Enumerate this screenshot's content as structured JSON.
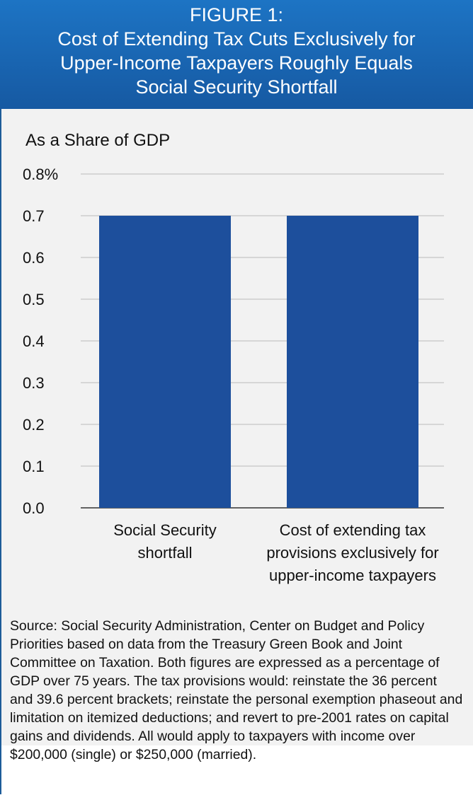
{
  "header": {
    "figure_label": "FIGURE 1:",
    "title_lines": [
      "Cost of Extending Tax Cuts Exclusively for",
      "Upper-Income Taxpayers Roughly Equals",
      "Social Security Shortfall"
    ]
  },
  "colors": {
    "header_bg": "#1a66b3",
    "bar": "#1d4f9c",
    "panel_bg": "#f2f2f2",
    "gridline": "#bbbbbb"
  },
  "chart_data": {
    "type": "bar",
    "subtitle": "As a Share of GDP",
    "categories": [
      [
        "Social Security",
        "shortfall"
      ],
      [
        "Cost of extending tax",
        "provisions exclusively for",
        "upper-income taxpayers"
      ]
    ],
    "values": [
      0.7,
      0.7
    ],
    "ylim": [
      0,
      0.8
    ],
    "yticks": [
      "0.0",
      "0.1",
      "0.2",
      "0.3",
      "0.4",
      "0.5",
      "0.6",
      "0.7",
      "0.8"
    ],
    "ytick_unit": "%",
    "grid": true
  },
  "source_text": "Source: Social Security Administration, Center on Budget and Policy Priorities based on data from the Treasury Green Book and Joint Committee on Taxation.  Both figures are expressed as a percentage of GDP over 75 years.  The tax provisions would: reinstate the 36 percent and 39.6 percent brackets; reinstate the personal exemption phaseout and limitation on itemized deductions; and revert to pre-2001 rates on capital gains and dividends.  All would apply to taxpayers with income over $200,000 (single) or $250,000 (married)."
}
